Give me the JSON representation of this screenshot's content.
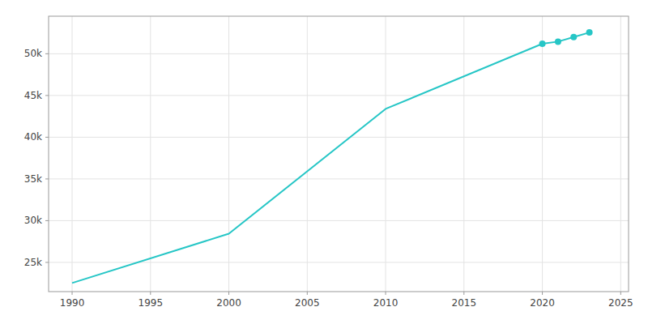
{
  "chart_data": {
    "type": "line",
    "x": [
      1990,
      2000,
      2010,
      2020,
      2021,
      2022,
      2023
    ],
    "series": [
      {
        "color": "#26C6C6",
        "values": [
          22527,
          28438,
          43392,
          51202,
          51454,
          52001,
          52549
        ]
      },
      {
        "type": "scatter",
        "marker": "circle",
        "color": "#26C6C6",
        "values": [
          null,
          null,
          null,
          51202,
          51454,
          52001,
          52549
        ]
      }
    ],
    "xlim": [
      1988.5,
      2025.5
    ],
    "xticks": [
      1990,
      1995,
      2000,
      2005,
      2010,
      2015,
      2020,
      2025
    ],
    "ylim": [
      21500,
      54500
    ],
    "yticks": [
      {
        "value": 25000,
        "label": "25k"
      },
      {
        "value": 30000,
        "label": "30k"
      },
      {
        "value": 35000,
        "label": "35k"
      },
      {
        "value": 40000,
        "label": "40k"
      },
      {
        "value": 45000,
        "label": "45k"
      },
      {
        "value": 50000,
        "label": "50k"
      }
    ],
    "grid": true
  }
}
